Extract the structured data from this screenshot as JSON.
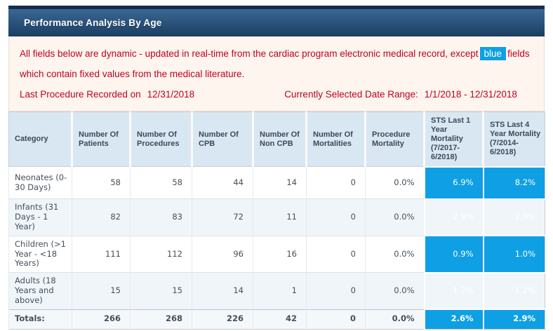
{
  "title": "Performance Analysis By Age",
  "notice": {
    "prefix": "All fields below are dynamic - updated in real-time from the cardiac program electronic medical record, except",
    "chip": "blue",
    "suffix": "fields which contain fixed values from the medical literature."
  },
  "dates": {
    "last_procedure_label": "Last Procedure Recorded on",
    "last_procedure_value": "12/31/2018",
    "range_label": "Currently Selected Date Range:",
    "range_value": "1/1/2018 - 12/31/2018"
  },
  "colors": {
    "accent_blue": "#0f9fe4",
    "red_text": "#c00023",
    "title_gradient_top": "#3a6793",
    "title_gradient_bottom": "#1d3d62",
    "table_header_bg": "#d9e7f3"
  },
  "table": {
    "columns": [
      "Category",
      "Number Of Patients",
      "Number Of Procedures",
      "Number Of CPB",
      "Number Of Non CPB",
      "Number Of Mortalities",
      "Procedure Mortality",
      "STS Last 1 Year Mortality (7/2017-6/2018)",
      "STS Last 4 Year Mortality (7/2014-6/2018)"
    ],
    "rows": [
      {
        "category": "Neonates (0-30 Days)",
        "values": [
          "58",
          "58",
          "44",
          "14",
          "0",
          "0.0%"
        ],
        "sts": [
          "6.9%",
          "8.2%"
        ],
        "total": false
      },
      {
        "category": "Infants (31 Days - 1 Year)",
        "values": [
          "82",
          "83",
          "72",
          "11",
          "0",
          "0.0%"
        ],
        "sts": [
          "2.9%",
          "2.9%"
        ],
        "total": false
      },
      {
        "category": "Children (>1 Year - <18 Years)",
        "values": [
          "111",
          "112",
          "96",
          "16",
          "0",
          "0.0%"
        ],
        "sts": [
          "0.9%",
          "1.0%"
        ],
        "total": false
      },
      {
        "category": "Adults (18 Years and above)",
        "values": [
          "15",
          "15",
          "14",
          "1",
          "0",
          "0.0%"
        ],
        "sts": [
          "1.2%",
          "1.2%"
        ],
        "total": false
      },
      {
        "category": "Totals:",
        "values": [
          "266",
          "268",
          "226",
          "42",
          "0",
          "0.0%"
        ],
        "sts": [
          "2.6%",
          "2.9%"
        ],
        "total": true
      }
    ]
  }
}
